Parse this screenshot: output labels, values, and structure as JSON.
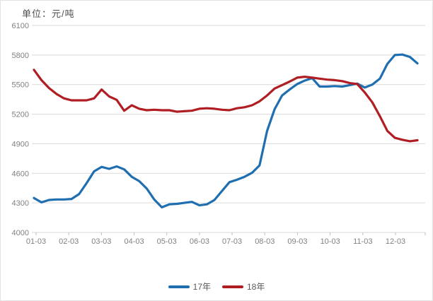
{
  "title": "单位：元/吨",
  "colors": {
    "series_blue": "#1f6eb0",
    "series_red": "#b01e23",
    "grid": "#d9d9d9",
    "tick_text": "#808080",
    "title_text": "#4d4d4d",
    "legend_text": "#595959"
  },
  "legend": {
    "items": [
      {
        "label": "17年",
        "color": "#1f6eb0"
      },
      {
        "label": "18年",
        "color": "#b01e23"
      }
    ]
  },
  "chart_data": {
    "type": "line",
    "title": "单位：元/吨",
    "xlabel": "",
    "ylabel": "",
    "ylim": [
      4000,
      6100
    ],
    "y_ticks": [
      6100,
      5800,
      5500,
      5200,
      4900,
      4600,
      4300,
      4000
    ],
    "x_labels": [
      "01-03",
      "02-03",
      "03-03",
      "04-03",
      "05-03",
      "06-03",
      "07-03",
      "08-03",
      "09-03",
      "10-03",
      "11-03",
      "12-03"
    ],
    "grid": true,
    "legend_position": "bottom",
    "sampling": "weekly, ~52 points per series spanning 01-03 to 12-24",
    "series": [
      {
        "name": "17年",
        "color": "#1f6eb0",
        "values": [
          4350,
          4305,
          4330,
          4335,
          4335,
          4340,
          4390,
          4500,
          4620,
          4665,
          4645,
          4670,
          4640,
          4565,
          4520,
          4445,
          4335,
          4255,
          4285,
          4290,
          4300,
          4310,
          4275,
          4285,
          4330,
          4420,
          4510,
          4535,
          4565,
          4605,
          4680,
          5030,
          5250,
          5390,
          5450,
          5505,
          5540,
          5565,
          5480,
          5480,
          5485,
          5480,
          5495,
          5510,
          5470,
          5500,
          5560,
          5710,
          5800,
          5805,
          5780,
          5715
        ]
      },
      {
        "name": "18年",
        "color": "#b01e23",
        "values": [
          5650,
          5545,
          5465,
          5405,
          5360,
          5340,
          5340,
          5340,
          5360,
          5450,
          5380,
          5345,
          5235,
          5290,
          5255,
          5240,
          5245,
          5240,
          5240,
          5225,
          5230,
          5235,
          5255,
          5260,
          5255,
          5245,
          5240,
          5260,
          5270,
          5290,
          5330,
          5390,
          5460,
          5495,
          5530,
          5570,
          5580,
          5570,
          5560,
          5550,
          5545,
          5535,
          5515,
          5505,
          5420,
          5320,
          5180,
          5030,
          4960,
          4940,
          4925,
          4935
        ]
      }
    ]
  }
}
